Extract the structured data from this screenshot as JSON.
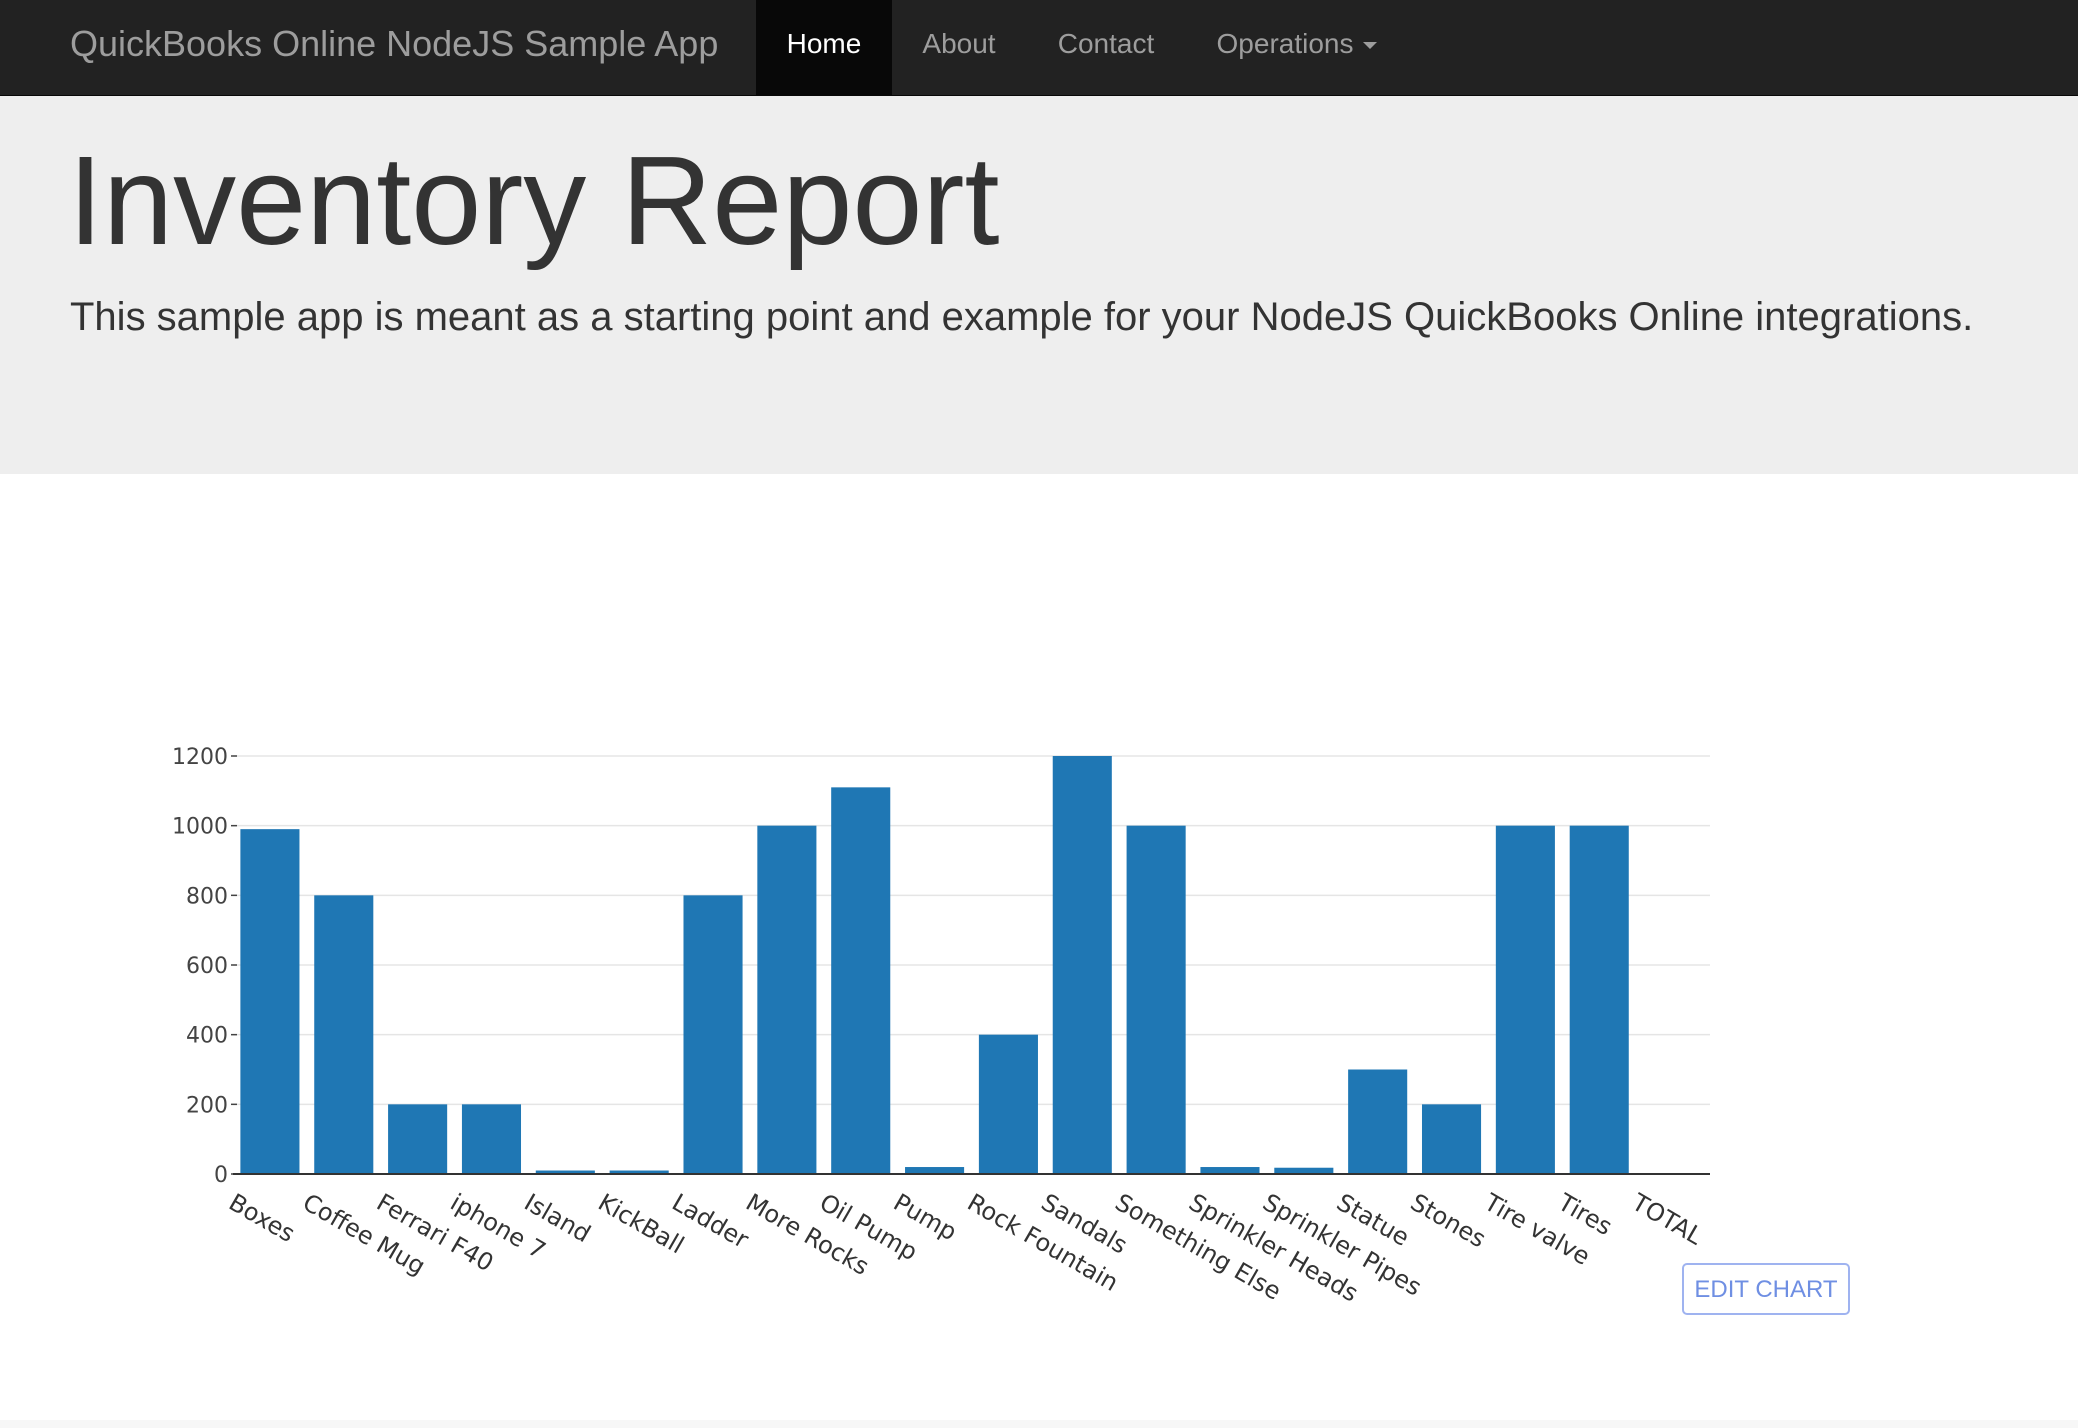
{
  "navbar": {
    "brand": "QuickBooks Online NodeJS Sample App",
    "items": [
      {
        "label": "Home",
        "active": true
      },
      {
        "label": "About",
        "active": false
      },
      {
        "label": "Contact",
        "active": false
      },
      {
        "label": "Operations",
        "active": false,
        "dropdown": true
      }
    ]
  },
  "header": {
    "title": "Inventory Report",
    "lead": "This sample app is meant as a starting point and example for your NodeJS QuickBooks Online integrations."
  },
  "edit_chart_label": "EDIT CHART",
  "colors": {
    "bar": "#1f77b4",
    "navbar": "#222222",
    "jumbotron": "#eeeeee",
    "grid": "#e5e5e5"
  },
  "chart_data": {
    "type": "bar",
    "categories": [
      "Boxes",
      "Coffee Mug",
      "Ferrari F40",
      "iphone 7",
      "Island",
      "KickBall",
      "Ladder",
      "More Rocks",
      "Oil Pump",
      "Pump",
      "Rock Fountain",
      "Sandals",
      "Something Else",
      "Sprinkler Heads",
      "Sprinkler Pipes",
      "Statue",
      "Stones",
      "Tire valve",
      "Tires",
      "TOTAL"
    ],
    "values": [
      990,
      800,
      200,
      200,
      10,
      10,
      800,
      1000,
      1110,
      20,
      400,
      1200,
      1000,
      20,
      18,
      300,
      200,
      1000,
      1000,
      0
    ],
    "yticks": [
      0,
      200,
      400,
      600,
      800,
      1000,
      1200
    ],
    "ylim": [
      0,
      1200
    ],
    "grid": true,
    "title": "",
    "xlabel": "",
    "ylabel": ""
  }
}
